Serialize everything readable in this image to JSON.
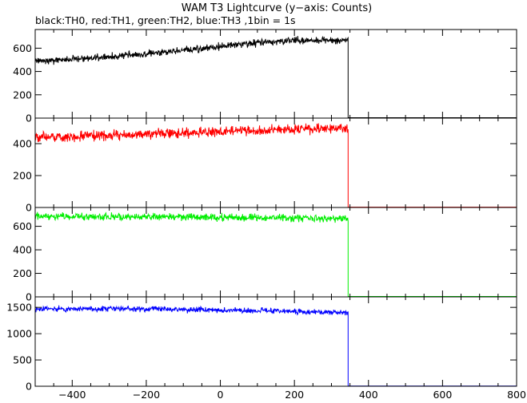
{
  "chart_data": {
    "type": "line",
    "title": "WAM T3 Lightcurve (y−axis: Counts)",
    "subtitle": "black:TH0, red:TH1, green:TH2, blue:TH3 ,1bin = 1s",
    "xlim": [
      -500,
      800
    ],
    "xticks": [
      -400,
      -200,
      0,
      200,
      400,
      600,
      800
    ],
    "xtick_labels": [
      "−400",
      "−200",
      "0",
      "200",
      "400",
      "600",
      "800"
    ],
    "drop_x": 345,
    "sampled_points": [
      -500,
      -400,
      -300,
      -200,
      -100,
      0,
      100,
      200,
      300,
      345
    ],
    "panels": [
      {
        "color": "#000000",
        "ylim": [
          0,
          760
        ],
        "yticks": [
          0,
          200,
          400,
          600
        ],
        "sampled_values": [
          490,
          505,
          525,
          555,
          585,
          615,
          645,
          665,
          670,
          665
        ],
        "noise": 26,
        "after_value": 3
      },
      {
        "color": "#ff0000",
        "ylim": [
          0,
          560
        ],
        "yticks": [
          0,
          200,
          400
        ],
        "sampled_values": [
          440,
          445,
          452,
          460,
          468,
          476,
          482,
          488,
          495,
          495
        ],
        "noise": 26,
        "after_value": 2
      },
      {
        "color": "#00ee00",
        "ylim": [
          0,
          760
        ],
        "yticks": [
          0,
          200,
          400,
          600
        ],
        "sampled_values": [
          690,
          685,
          680,
          682,
          680,
          675,
          675,
          670,
          665,
          665
        ],
        "noise": 26,
        "after_value": 3
      },
      {
        "color": "#0000ff",
        "ylim": [
          0,
          1700
        ],
        "yticks": [
          0,
          500,
          1000,
          1500
        ],
        "sampled_values": [
          1470,
          1475,
          1475,
          1470,
          1460,
          1450,
          1440,
          1420,
          1400,
          1400
        ],
        "noise": 45,
        "after_value": 3
      }
    ]
  }
}
